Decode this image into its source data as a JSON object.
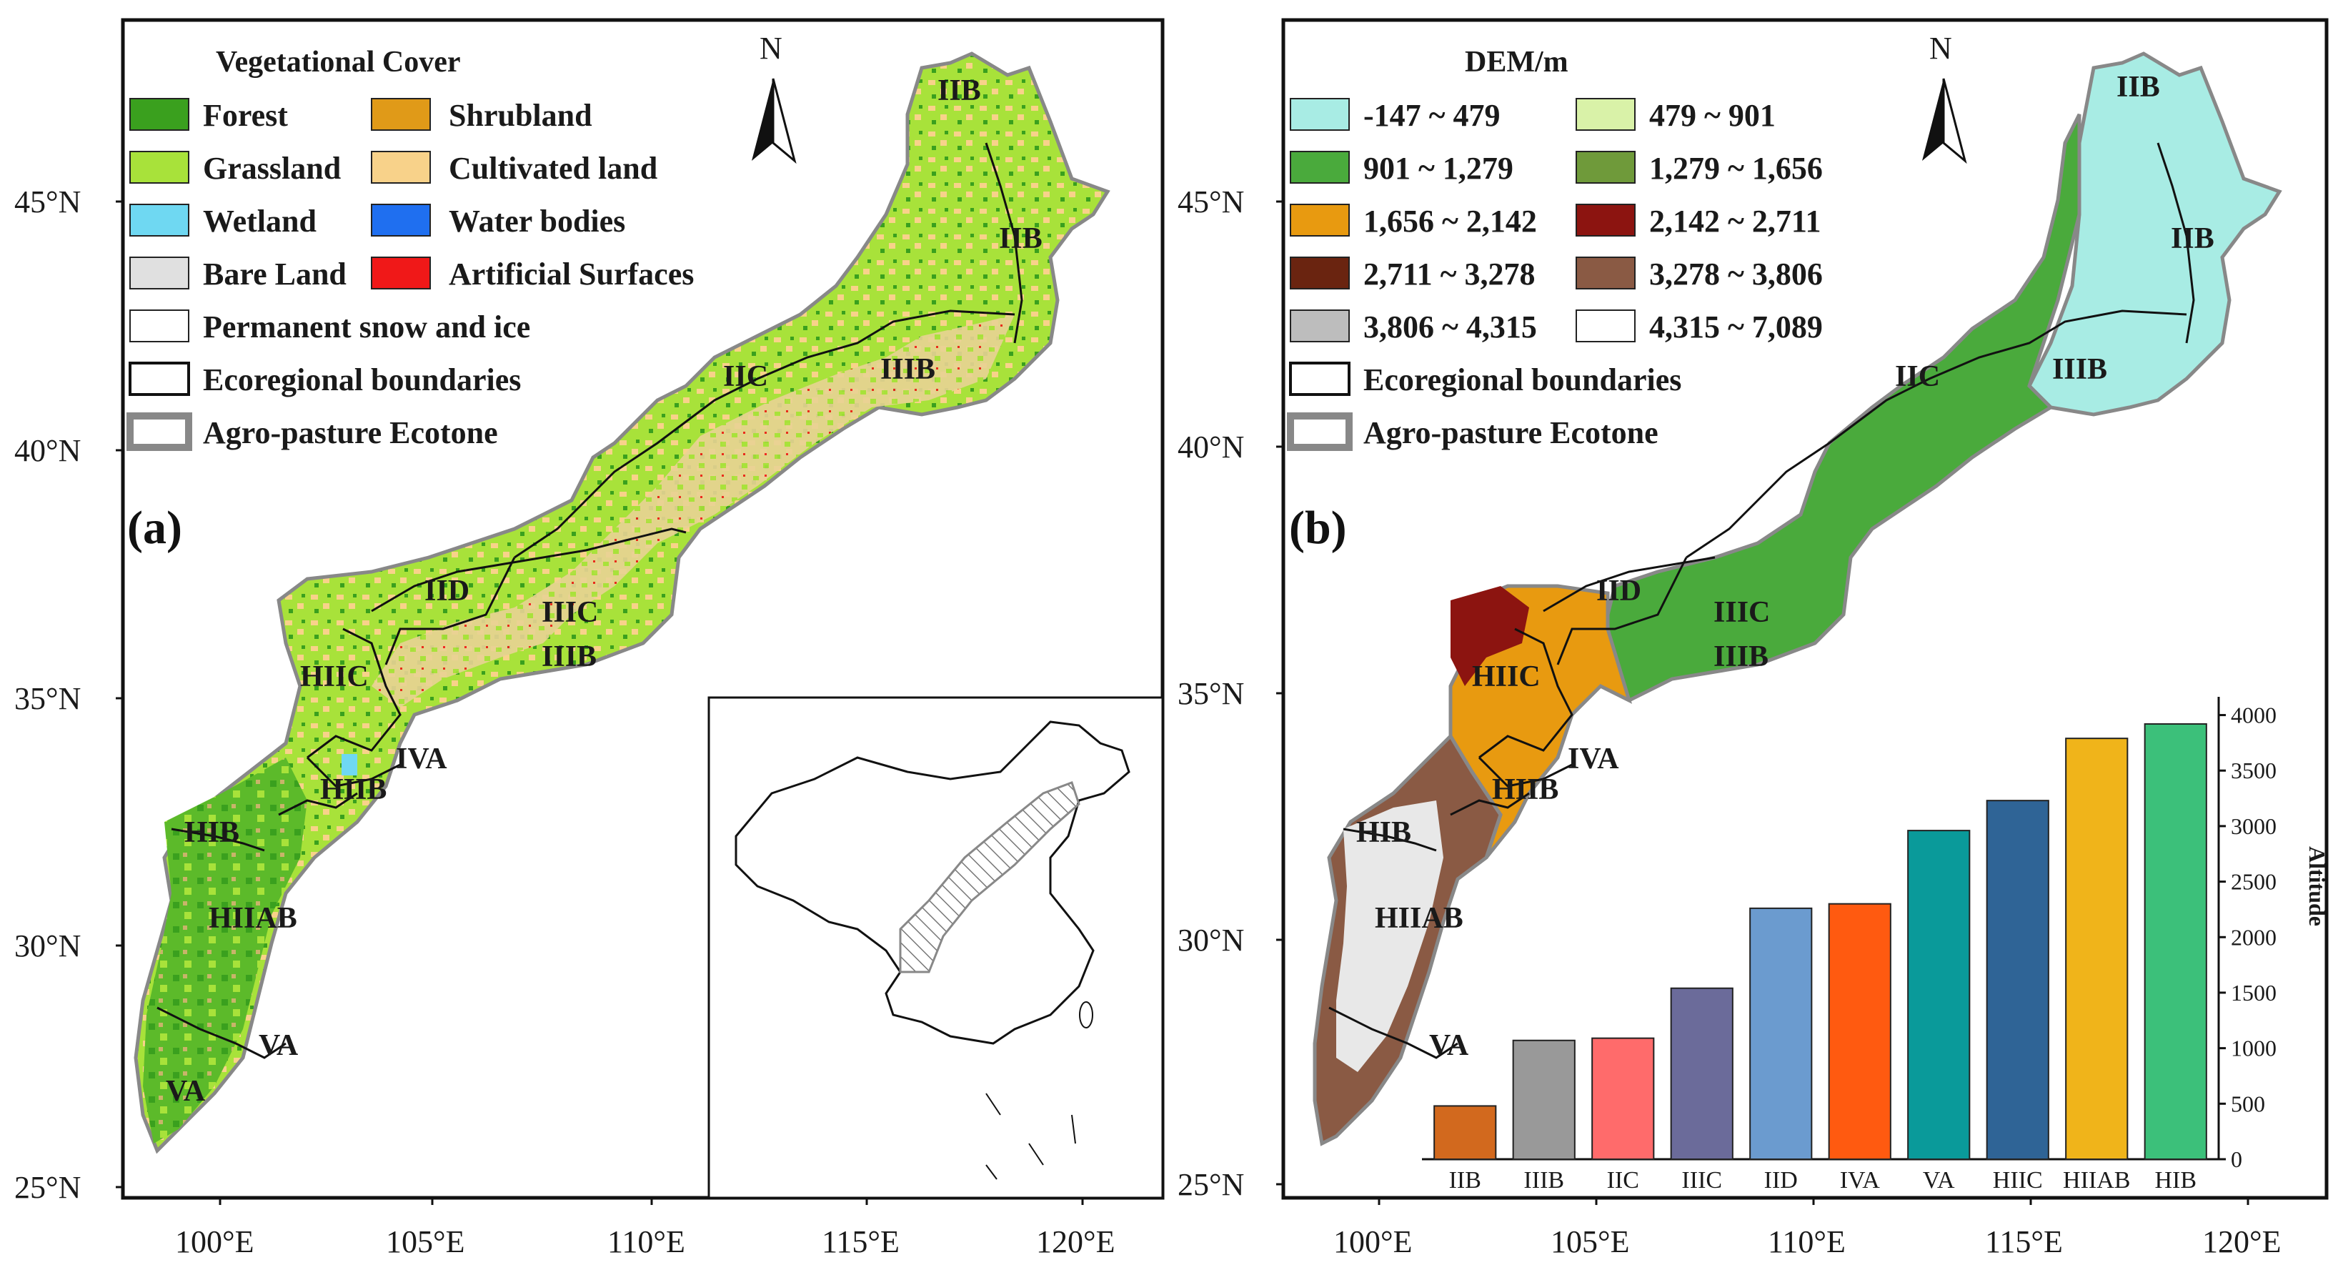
{
  "panel_a": {
    "label": "(a)",
    "legend_title": "Vegetational Cover",
    "legend_items": [
      {
        "label": "Forest",
        "color": "#3aa01e"
      },
      {
        "label": "Shrubland",
        "color": "#e09a18"
      },
      {
        "label": "Grassland",
        "color": "#a8e23a"
      },
      {
        "label": "Cultivated land",
        "color": "#f8d28a"
      },
      {
        "label": "Wetland",
        "color": "#6fd8f2"
      },
      {
        "label": "Water bodies",
        "color": "#1f6ff0"
      },
      {
        "label": "Bare Land",
        "color": "#e0e0e0"
      },
      {
        "label": "Artificial Surfaces",
        "color": "#f01818"
      },
      {
        "label": "Permanent snow and ice",
        "color": "#ffffff"
      }
    ],
    "boundary_label": "Ecoregional boundaries",
    "ecotone_label": "Agro-pasture Ecotone",
    "north": "N",
    "regions": [
      "IIB",
      "IIB",
      "IIC",
      "IIIB",
      "IID",
      "IIIC",
      "IIIB",
      "HIIC",
      "IVA",
      "HIIB",
      "HIB",
      "HIIAB",
      "VA",
      "VA"
    ],
    "inset_name": "China inset map"
  },
  "panel_b": {
    "label": "(b)",
    "legend_title": "DEM/m",
    "legend_items": [
      {
        "label": "-147 ~ 479",
        "color": "#a8ece4"
      },
      {
        "label": "479 ~ 901",
        "color": "#d9f2a8"
      },
      {
        "label": "901 ~ 1,279",
        "color": "#4aaa3c"
      },
      {
        "label": "1,279 ~ 1,656",
        "color": "#6f9a3a"
      },
      {
        "label": "1,656 ~ 2,142",
        "color": "#e89a10"
      },
      {
        "label": "2,142 ~ 2,711",
        "color": "#8c1410"
      },
      {
        "label": "2,711 ~ 3,278",
        "color": "#6a2410"
      },
      {
        "label": "3,278 ~ 3,806",
        "color": "#8a5a44"
      },
      {
        "label": "3,806 ~ 4,315",
        "color": "#bdbdbd"
      },
      {
        "label": "4,315 ~ 7,089",
        "color": "#ffffff"
      }
    ],
    "boundary_label": "Ecoregional boundaries",
    "ecotone_label": "Agro-pasture Ecotone",
    "north": "N",
    "regions": [
      "IIB",
      "IIB",
      "IIC",
      "IIIB",
      "IID",
      "IIIC",
      "IIIB",
      "HIIC",
      "IVA",
      "HIIB",
      "HIB",
      "HIIAB",
      "VA"
    ]
  },
  "axes": {
    "lat_labels": [
      "45°N",
      "40°N",
      "35°N",
      "30°N",
      "25°N"
    ],
    "lon_labels": [
      "100°E",
      "105°E",
      "110°E",
      "115°E",
      "120°E"
    ]
  },
  "chart_data": {
    "type": "bar",
    "categories": [
      "IIB",
      "IIIB",
      "IIC",
      "IIIC",
      "IID",
      "IVA",
      "VA",
      "HIIC",
      "HIIAB",
      "HIB"
    ],
    "values": [
      480,
      1070,
      1090,
      1540,
      2260,
      2300,
      2960,
      3230,
      3790,
      3920
    ],
    "colors": [
      "#d2691e",
      "#999999",
      "#ff6b6b",
      "#6b6b9a",
      "#6b9bcf",
      "#ff5a10",
      "#0a9a9a",
      "#2f6496",
      "#f0b41a",
      "#3cc07a"
    ],
    "ylabel": "Altitude",
    "ylim": [
      0,
      4100
    ],
    "yticks": [
      "0",
      "500",
      "1000",
      "1500",
      "2000",
      "2500",
      "3000",
      "3500",
      "4000"
    ],
    "ytick_values": [
      0,
      500,
      1000,
      1500,
      2000,
      2500,
      3000,
      3500,
      4000
    ],
    "axis_side": "right"
  }
}
